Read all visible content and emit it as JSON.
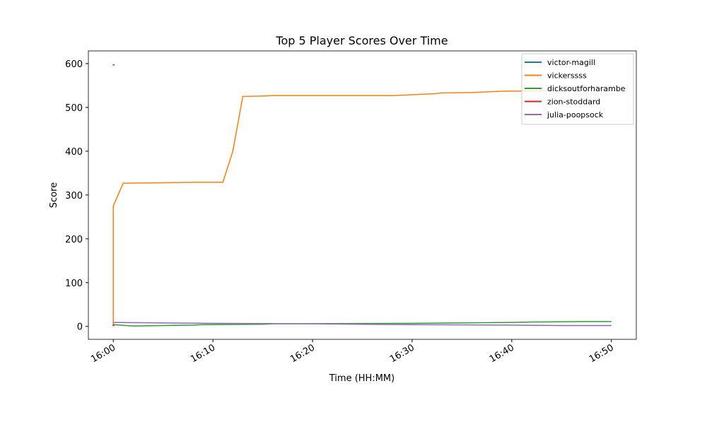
{
  "chart_data": {
    "type": "line",
    "title": "Top 5 Player Scores Over Time",
    "x_label": "Time (HH:MM)",
    "y_label": "Score",
    "xlim": [
      "15:57:30",
      "16:52:30"
    ],
    "ylim": [
      -29.5,
      629
    ],
    "xticks": [
      "16:00",
      "16:10",
      "16:20",
      "16:30",
      "16:40",
      "16:50"
    ],
    "yticks": [
      0,
      100,
      200,
      300,
      400,
      500,
      600
    ],
    "legend": "upper right",
    "series": [
      {
        "name": "victor-magill",
        "color": "#1f77b4",
        "x": [
          "16:00"
        ],
        "values": [
          597
        ]
      },
      {
        "name": "vickerssss",
        "color": "#ff7f0e",
        "x": [
          "16:00",
          "16:00",
          "16:01",
          "16:05",
          "16:08",
          "16:11",
          "16:12",
          "16:13",
          "16:15",
          "16:16",
          "16:28",
          "16:30",
          "16:32",
          "16:33",
          "16:36",
          "16:39",
          "16:44"
        ],
        "values": [
          0,
          275,
          327,
          328,
          329,
          329,
          400,
          525,
          526,
          527,
          527,
          529,
          531,
          533,
          534,
          537,
          538
        ]
      },
      {
        "name": "dicksoutforharambe",
        "color": "#2ca02c",
        "x": [
          "16:00",
          "16:02",
          "16:05",
          "16:08",
          "16:09",
          "16:15",
          "16:16",
          "16:30",
          "16:35",
          "16:40",
          "16:42",
          "16:47",
          "16:50"
        ],
        "values": [
          4,
          1,
          2,
          3,
          4,
          5,
          6,
          7,
          8,
          9,
          10,
          11,
          11
        ]
      },
      {
        "name": "zion-stoddard",
        "color": "#d62728",
        "x": [
          "16:00"
        ],
        "values": [
          3
        ]
      },
      {
        "name": "julia-poopsock",
        "color": "#9467bd",
        "x": [
          "16:00",
          "16:10",
          "16:20",
          "16:30",
          "16:40",
          "16:45",
          "16:50"
        ],
        "values": [
          9,
          7,
          6,
          4,
          3,
          2,
          2
        ]
      }
    ]
  }
}
